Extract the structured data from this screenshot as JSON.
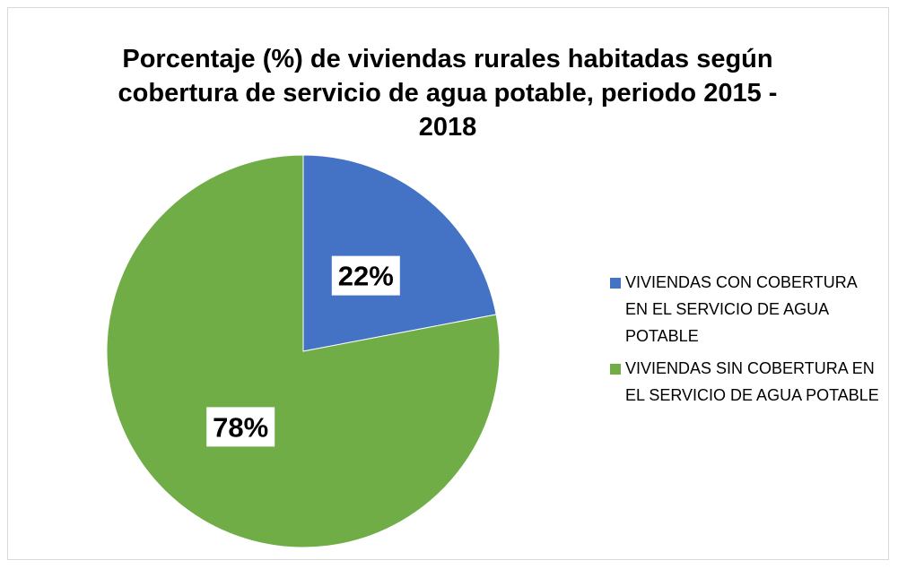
{
  "chart_data": {
    "type": "pie",
    "title": "Porcentaje (%) de viviendas rurales habitadas según cobertura de servicio de agua potable, periodo 2015 - 2018",
    "categories": [
      "VIVIENDAS CON COBERTURA EN EL SERVICIO DE AGUA POTABLE",
      "VIVIENDAS SIN COBERTURA EN EL SERVICIO DE AGUA POTABLE"
    ],
    "values": [
      22,
      78
    ],
    "value_labels": [
      "22%",
      "78%"
    ],
    "colors": [
      "#4472c4",
      "#70ad47"
    ],
    "legend": "right"
  }
}
